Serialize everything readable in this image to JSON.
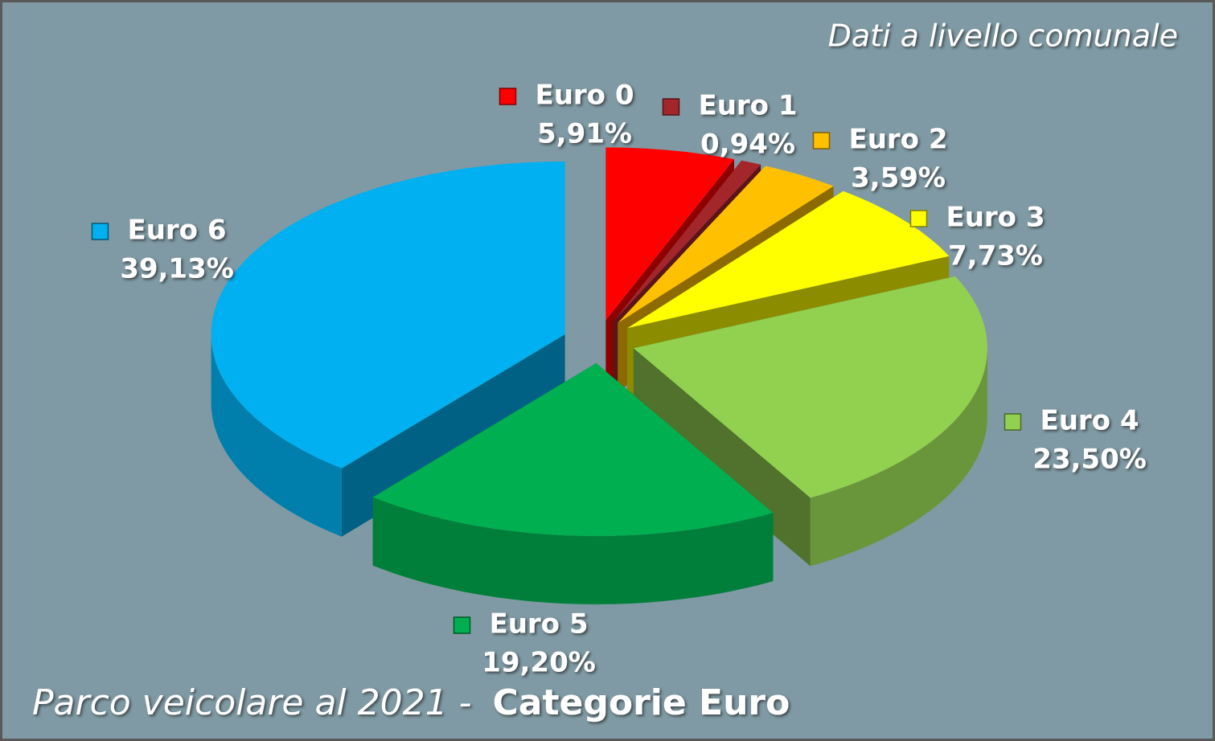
{
  "chart_data": {
    "type": "pie",
    "title": [
      "Parco veicolare al 2021 -",
      "Categorie Euro"
    ],
    "subtitle": "Dati a livello comunale",
    "categories": [
      "Euro 0",
      "Euro 1",
      "Euro 2",
      "Euro 3",
      "Euro 4",
      "Euro 5",
      "Euro 6"
    ],
    "values": [
      5.91,
      0.94,
      3.59,
      7.73,
      23.5,
      19.2,
      39.13
    ],
    "value_labels": [
      "5,91%",
      "0,94%",
      "3,59%",
      "7,73%",
      "23,50%",
      "19,20%",
      "39,13%"
    ],
    "colors": [
      "#ff0000",
      "#a3262b",
      "#ffc000",
      "#ffff00",
      "#92d050",
      "#00b050",
      "#00b0f0"
    ]
  }
}
